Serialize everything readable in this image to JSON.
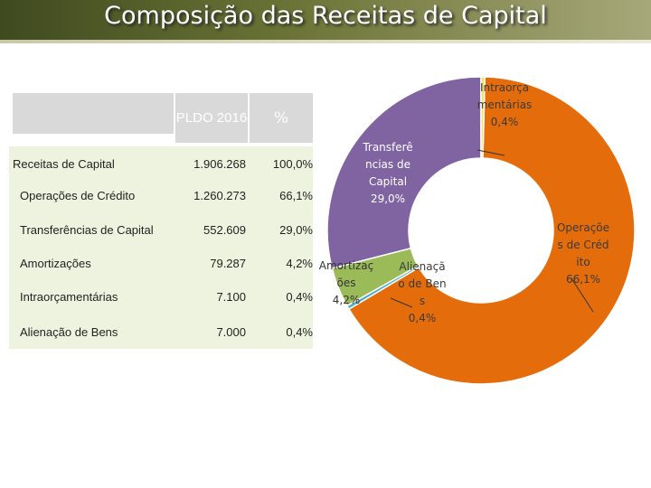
{
  "title": "Composição das Receitas de Capital",
  "table": {
    "header": [
      "PLDO 2016",
      "%"
    ],
    "rows": [
      [
        "Receitas de Capital",
        "1.906.268",
        "100,0%"
      ],
      [
        "Operações de Crédito",
        "1.260.273",
        "66,1%"
      ],
      [
        "Transferências de Capital",
        "552.609",
        "29,0%"
      ],
      [
        "Amortizações",
        "79.287",
        "4,2%"
      ],
      [
        "Intraorçamentárias",
        "7.100",
        "0,4%"
      ],
      [
        "Alienação de Bens",
        "7.000",
        "0,4%"
      ]
    ]
  },
  "chart_data": {
    "type": "donut",
    "categories": [
      "Intraorçamentárias",
      "Operações de Crédito",
      "Alienação de Bens",
      "Amortizações",
      "Transferências de Capital"
    ],
    "values": [
      0.4,
      66.1,
      0.4,
      4.2,
      29.0
    ],
    "value_labels": [
      "0,4%",
      "66,1%",
      "0,4%",
      "4,2%",
      "29,0%"
    ],
    "colors": [
      "#f2e55c",
      "#e46c0a",
      "#4bacc6",
      "#9bbb59",
      "#8064a2"
    ]
  }
}
